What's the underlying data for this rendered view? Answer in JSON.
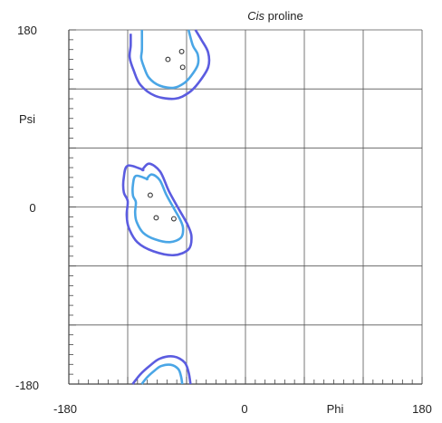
{
  "chart_data": {
    "type": "scatter",
    "title_italic": "Cis",
    "title_rest": " proline",
    "xlabel": "Phi",
    "ylabel": "Psi",
    "xlim": [
      -180,
      180
    ],
    "ylim": [
      -180,
      180
    ],
    "x_ticks": [
      "-180",
      "0",
      "180"
    ],
    "y_ticks": [
      "180",
      "0",
      "-180"
    ],
    "grid": true,
    "major_grid_step": 60,
    "minor_tick_step": 10,
    "colors": {
      "outer_contour": "#5b5ce0",
      "inner_contour": "#4aa6e6",
      "points": "#333333",
      "grid": "#555555",
      "axis": "#444444"
    },
    "points": [
      {
        "phi": -65,
        "psi": 158
      },
      {
        "phi": -79,
        "psi": 150
      },
      {
        "phi": -64,
        "psi": 142
      },
      {
        "phi": -97,
        "psi": 12
      },
      {
        "phi": -91,
        "psi": -11
      },
      {
        "phi": -73,
        "psi": -12
      }
    ],
    "contours": [
      {
        "level": "outer",
        "points": [
          [
            -117,
            176
          ],
          [
            -117,
            164
          ],
          [
            -118,
            152
          ],
          [
            -114,
            139
          ],
          [
            -107,
            124
          ],
          [
            -92,
            113
          ],
          [
            -72,
            110
          ],
          [
            -58,
            116
          ],
          [
            -48,
            126
          ],
          [
            -38,
            142
          ],
          [
            -38,
            157
          ],
          [
            -45,
            170
          ],
          [
            -51,
            180
          ],
          [
            -105,
            38
          ],
          [
            -120,
            42
          ],
          [
            -124,
            30
          ],
          [
            -124,
            15
          ],
          [
            -120,
            6
          ],
          [
            -121,
            -8
          ],
          [
            -119,
            -21
          ],
          [
            -110,
            -36
          ],
          [
            -94,
            -45
          ],
          [
            -73,
            -49
          ],
          [
            -58,
            -43
          ],
          [
            -55,
            -30
          ],
          [
            -59,
            -18
          ],
          [
            -68,
            -2
          ],
          [
            -78,
            16
          ],
          [
            -87,
            36
          ],
          [
            -98,
            44
          ],
          [
            -105,
            38
          ],
          [
            -115,
            -180
          ],
          [
            -107,
            -170
          ],
          [
            -97,
            -161
          ],
          [
            -87,
            -154
          ],
          [
            -73,
            -152
          ],
          [
            -62,
            -158
          ],
          [
            -58,
            -168
          ],
          [
            -56,
            -180
          ]
        ]
      }
    ]
  }
}
